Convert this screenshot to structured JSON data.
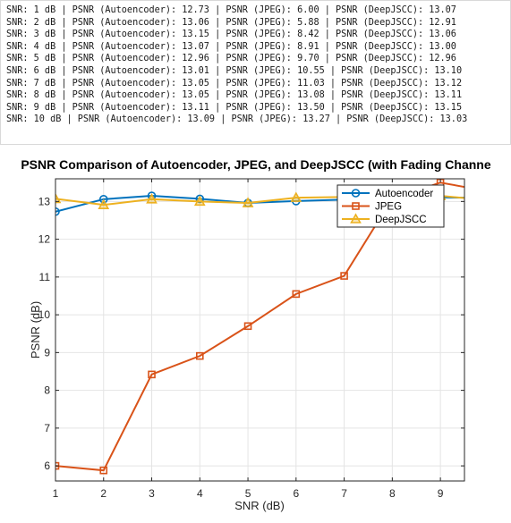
{
  "console": {
    "lines": [
      "SNR: 1 dB | PSNR (Autoencoder): 12.73 | PSNR (JPEG): 6.00 | PSNR (DeepJSCC): 13.07",
      "SNR: 2 dB | PSNR (Autoencoder): 13.06 | PSNR (JPEG): 5.88 | PSNR (DeepJSCC): 12.91",
      "SNR: 3 dB | PSNR (Autoencoder): 13.15 | PSNR (JPEG): 8.42 | PSNR (DeepJSCC): 13.06",
      "SNR: 4 dB | PSNR (Autoencoder): 13.07 | PSNR (JPEG): 8.91 | PSNR (DeepJSCC): 13.00",
      "SNR: 5 dB | PSNR (Autoencoder): 12.96 | PSNR (JPEG): 9.70 | PSNR (DeepJSCC): 12.96",
      "SNR: 6 dB | PSNR (Autoencoder): 13.01 | PSNR (JPEG): 10.55 | PSNR (DeepJSCC): 13.10",
      "SNR: 7 dB | PSNR (Autoencoder): 13.05 | PSNR (JPEG): 11.03 | PSNR (DeepJSCC): 13.12",
      "SNR: 8 dB | PSNR (Autoencoder): 13.05 | PSNR (JPEG): 13.08 | PSNR (DeepJSCC): 13.11",
      "SNR: 9 dB | PSNR (Autoencoder): 13.11 | PSNR (JPEG): 13.50 | PSNR (DeepJSCC): 13.15",
      "SNR: 10 dB | PSNR (Autoencoder): 13.09 | PSNR (JPEG): 13.27 | PSNR (DeepJSCC): 13.03"
    ]
  },
  "chart_data": {
    "type": "line",
    "title": "PSNR Comparison of Autoencoder, JPEG, and DeepJSCC (with Fading Channe",
    "xlabel": "SNR (dB)",
    "ylabel": "PSNR (dB)",
    "x": [
      1,
      2,
      3,
      4,
      5,
      6,
      7,
      8,
      9,
      10
    ],
    "xlim": [
      1,
      9.5
    ],
    "ylim": [
      5.6,
      13.6
    ],
    "xticks": [
      1,
      2,
      3,
      4,
      5,
      6,
      7,
      8,
      9
    ],
    "yticks": [
      6,
      7,
      8,
      9,
      10,
      11,
      12,
      13
    ],
    "grid": true,
    "legend_position": "top-right",
    "series": [
      {
        "name": "Autoencoder",
        "color": "#0072BD",
        "marker": "circle",
        "values": [
          12.73,
          13.06,
          13.15,
          13.07,
          12.96,
          13.01,
          13.05,
          13.05,
          13.11,
          13.09
        ]
      },
      {
        "name": "JPEG",
        "color": "#D95319",
        "marker": "square",
        "values": [
          6.0,
          5.88,
          8.42,
          8.91,
          9.7,
          10.55,
          11.03,
          13.08,
          13.5,
          13.27
        ]
      },
      {
        "name": "DeepJSCC",
        "color": "#EDB120",
        "marker": "triangle",
        "values": [
          13.07,
          12.91,
          13.06,
          13.0,
          12.96,
          13.1,
          13.12,
          13.11,
          13.15,
          13.03
        ]
      }
    ]
  }
}
